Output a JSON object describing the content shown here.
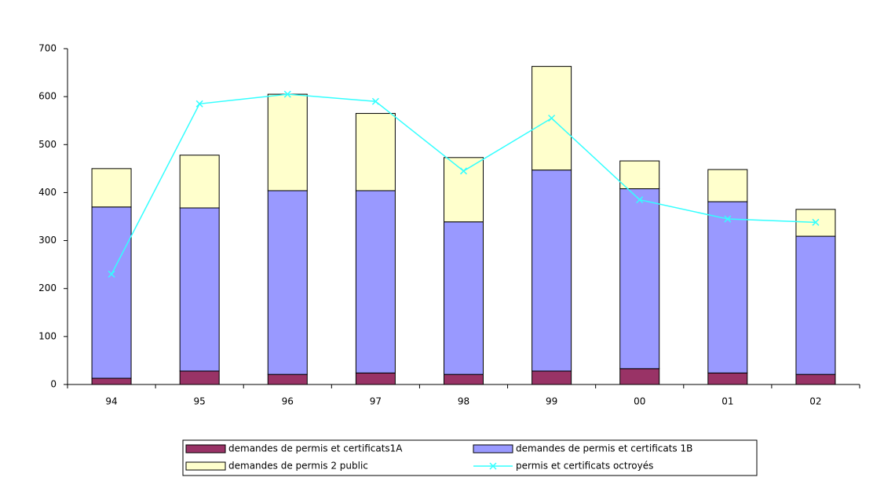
{
  "chart_data": {
    "type": "bar",
    "stacked": true,
    "grid": false,
    "legend": "bottom",
    "categories": [
      "94",
      "95",
      "96",
      "97",
      "98",
      "99",
      "00",
      "01",
      "02"
    ],
    "series": [
      {
        "name": "demandes de permis et certificats1A",
        "color": "#993366",
        "values": [
          13,
          28,
          21,
          24,
          21,
          28,
          33,
          24,
          21
        ]
      },
      {
        "name": "demandes de permis et certificats 1B",
        "color": "#9999ff",
        "values": [
          357,
          340,
          383,
          380,
          318,
          419,
          375,
          357,
          288
        ]
      },
      {
        "name": "demandes de permis 2 public",
        "color": "#ffffcc",
        "values": [
          80,
          110,
          201,
          161,
          134,
          216,
          58,
          67,
          56
        ]
      },
      {
        "name": "permis et certificats octroyés",
        "color": "#33ffff",
        "type": "line",
        "values": [
          230,
          585,
          605,
          590,
          445,
          555,
          385,
          345,
          338
        ]
      }
    ],
    "ylim": [
      0,
      700
    ],
    "yticks": [
      0,
      100,
      200,
      300,
      400,
      500,
      600,
      700
    ]
  }
}
